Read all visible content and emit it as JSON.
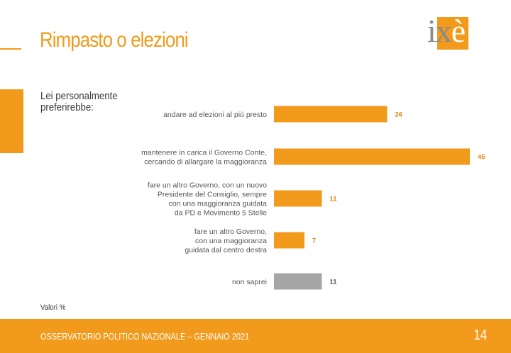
{
  "header": {
    "title": "Rimpasto o elezioni",
    "logo_text": "ixè"
  },
  "question": {
    "line1": "Lei personalmente",
    "line2": "preferirebbe:"
  },
  "chart_data": {
    "type": "bar",
    "orientation": "horizontal",
    "categories": [
      [
        "andare ad elezioni al più presto"
      ],
      [
        "mantenere in carica il Governo Conte,",
        "cercando di allargare la maggioranza"
      ],
      [
        "fare un altro Governo, con un nuovo",
        "Presidente del Consiglio, sempre",
        "con una maggioranza guidata",
        "da PD e Movimento 5 Stelle"
      ],
      [
        "fare un altro Governo,",
        "con una maggioranza",
        "guidata dal centro destra"
      ],
      [
        "non saprei"
      ]
    ],
    "values": [
      26,
      45,
      11,
      7,
      11
    ],
    "bar_colors": [
      "#f29a1b",
      "#f29a1b",
      "#f29a1b",
      "#f29a1b",
      "#a6a6a6"
    ],
    "label_colors": [
      "#e08a10",
      "#e08a10",
      "#e08a10",
      "#e08a10",
      "#555555"
    ],
    "xlim": [
      0,
      45
    ],
    "grid": false,
    "unit_note": "Valori %"
  },
  "footer": {
    "text": "OSSERVATORIO POLITICO NAZIONALE – GENNAIO 2021",
    "page": "14"
  },
  "colors": {
    "accent": "#f29a1b",
    "neutral_bar": "#a6a6a6"
  }
}
